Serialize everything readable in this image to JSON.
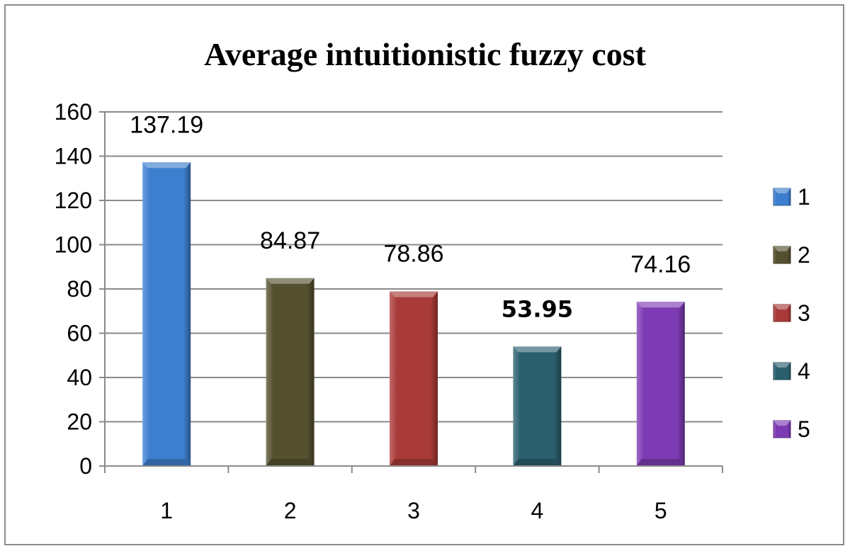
{
  "chart_data": {
    "type": "bar",
    "title": "Average intuitionistic fuzzy cost",
    "xlabel": "",
    "ylabel": "",
    "categories": [
      "1",
      "2",
      "3",
      "4",
      "5"
    ],
    "values": [
      137.19,
      84.87,
      78.86,
      53.95,
      74.16
    ],
    "value_labels": [
      "137.19",
      "84.87",
      "78.86",
      "53.95",
      "74.16"
    ],
    "bold_value_index": 3,
    "ylim": [
      0,
      160
    ],
    "yticks": [
      0,
      20,
      40,
      60,
      80,
      100,
      120,
      140,
      160
    ],
    "grid": true,
    "legend_position": "right",
    "legend": [
      "1",
      "2",
      "3",
      "4",
      "5"
    ],
    "colors": [
      "#3d7fcf",
      "#54502f",
      "#a83b38",
      "#2a5f6e",
      "#7d3bb3"
    ]
  }
}
